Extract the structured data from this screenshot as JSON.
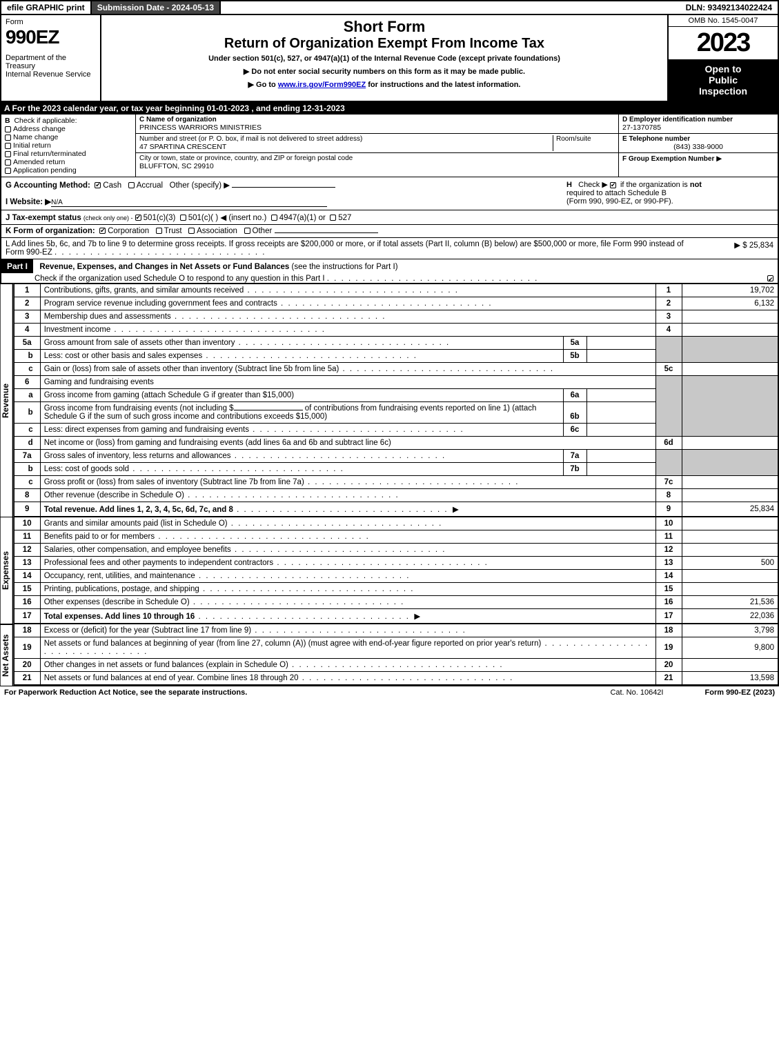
{
  "topbar": {
    "efile": "efile GRAPHIC print",
    "submission_label": "Submission Date - 2024-05-13",
    "dln": "DLN: 93492134022424"
  },
  "header": {
    "form_word": "Form",
    "form_number": "990EZ",
    "dept1": "Department of the Treasury",
    "dept2": "Internal Revenue Service",
    "title1": "Short Form",
    "title2": "Return of Organization Exempt From Income Tax",
    "subtitle": "Under section 501(c), 527, or 4947(a)(1) of the Internal Revenue Code (except private foundations)",
    "instr1": "▶ Do not enter social security numbers on this form as it may be made public.",
    "instr2_pre": "▶ Go to ",
    "instr2_link": "www.irs.gov/Form990EZ",
    "instr2_post": " for instructions and the latest information.",
    "omb": "OMB No. 1545-0047",
    "year": "2023",
    "inspection1": "Open to",
    "inspection2": "Public",
    "inspection3": "Inspection"
  },
  "lineA": "A  For the 2023 calendar year, or tax year beginning 01-01-2023 , and ending 12-31-2023",
  "boxB": {
    "title": "B",
    "check_label": "Check if applicable:",
    "opts": [
      "Address change",
      "Name change",
      "Initial return",
      "Final return/terminated",
      "Amended return",
      "Application pending"
    ]
  },
  "boxC": {
    "c_label": "C Name of organization",
    "org_name": "PRINCESS WARRIORS MINISTRIES",
    "addr_label": "Number and street (or P. O. box, if mail is not delivered to street address)",
    "room_label": "Room/suite",
    "street": "47 SPARTINA CRESCENT",
    "city_label": "City or town, state or province, country, and ZIP or foreign postal code",
    "city": "BLUFFTON, SC  29910"
  },
  "boxD": {
    "d_label": "D Employer identification number",
    "ein": "27-1370785",
    "e_label": "E Telephone number",
    "phone": "(843) 338-9000",
    "f_label": "F Group Exemption Number",
    "f_arrow": "▶"
  },
  "rowG": {
    "g_label": "G Accounting Method:",
    "g_cash": "Cash",
    "g_accrual": "Accrual",
    "g_other": "Other (specify) ▶",
    "h_label": "H",
    "h_text1": "Check ▶",
    "h_text2": "if the organization is ",
    "h_not": "not",
    "h_text3": "required to attach Schedule B",
    "h_text4": "(Form 990, 990-EZ, or 990-PF)."
  },
  "rowI": {
    "label": "I Website: ▶",
    "value": "N/A"
  },
  "rowJ": {
    "label": "J Tax-exempt status",
    "sub": "(check only one) -",
    "o1": "501(c)(3)",
    "o2": "501(c)(  ) ◀ (insert no.)",
    "o3": "4947(a)(1) or",
    "o4": "527"
  },
  "rowK": {
    "label": "K Form of organization:",
    "o1": "Corporation",
    "o2": "Trust",
    "o3": "Association",
    "o4": "Other"
  },
  "rowL": {
    "text1": "L Add lines 5b, 6c, and 7b to line 9 to determine gross receipts. If gross receipts are $200,000 or more, or if total assets (Part II, column (B) below) are $500,000 or more, file Form 990 instead of Form 990-EZ",
    "amount": "▶ $ 25,834"
  },
  "part1": {
    "label": "Part I",
    "title": "Revenue, Expenses, and Changes in Net Assets or Fund Balances",
    "title_paren": "(see the instructions for Part I)",
    "check_text": "Check if the organization used Schedule O to respond to any question in this Part I"
  },
  "sections": {
    "revenue_label": "Revenue",
    "expenses_label": "Expenses",
    "netassets_label": "Net Assets"
  },
  "lines": [
    {
      "n": "1",
      "desc": "Contributions, gifts, grants, and similar amounts received",
      "ln": "1",
      "val": "19,702"
    },
    {
      "n": "2",
      "desc": "Program service revenue including government fees and contracts",
      "ln": "2",
      "val": "6,132"
    },
    {
      "n": "3",
      "desc": "Membership dues and assessments",
      "ln": "3",
      "val": ""
    },
    {
      "n": "4",
      "desc": "Investment income",
      "ln": "4",
      "val": ""
    }
  ],
  "line5a": {
    "n": "5a",
    "desc": "Gross amount from sale of assets other than inventory",
    "mini": "5a"
  },
  "line5b": {
    "n": "b",
    "desc": "Less: cost or other basis and sales expenses",
    "mini": "5b"
  },
  "line5c": {
    "n": "c",
    "desc": "Gain or (loss) from sale of assets other than inventory (Subtract line 5b from line 5a)",
    "ln": "5c"
  },
  "line6": {
    "n": "6",
    "desc": "Gaming and fundraising events"
  },
  "line6a": {
    "n": "a",
    "desc": "Gross income from gaming (attach Schedule G if greater than $15,000)",
    "mini": "6a"
  },
  "line6b": {
    "n": "b",
    "desc1": "Gross income from fundraising events (not including $",
    "desc2": "of contributions from fundraising events reported on line 1) (attach Schedule G if the sum of such gross income and contributions exceeds $15,000)",
    "mini": "6b"
  },
  "line6c": {
    "n": "c",
    "desc": "Less: direct expenses from gaming and fundraising events",
    "mini": "6c"
  },
  "line6d": {
    "n": "d",
    "desc": "Net income or (loss) from gaming and fundraising events (add lines 6a and 6b and subtract line 6c)",
    "ln": "6d"
  },
  "line7a": {
    "n": "7a",
    "desc": "Gross sales of inventory, less returns and allowances",
    "mini": "7a"
  },
  "line7b": {
    "n": "b",
    "desc": "Less: cost of goods sold",
    "mini": "7b"
  },
  "line7c": {
    "n": "c",
    "desc": "Gross profit or (loss) from sales of inventory (Subtract line 7b from line 7a)",
    "ln": "7c"
  },
  "line8": {
    "n": "8",
    "desc": "Other revenue (describe in Schedule O)",
    "ln": "8"
  },
  "line9": {
    "n": "9",
    "desc": "Total revenue. Add lines 1, 2, 3, 4, 5c, 6d, 7c, and 8",
    "ln": "9",
    "val": "25,834"
  },
  "exp_lines": [
    {
      "n": "10",
      "desc": "Grants and similar amounts paid (list in Schedule O)",
      "ln": "10",
      "val": ""
    },
    {
      "n": "11",
      "desc": "Benefits paid to or for members",
      "ln": "11",
      "val": ""
    },
    {
      "n": "12",
      "desc": "Salaries, other compensation, and employee benefits",
      "ln": "12",
      "val": ""
    },
    {
      "n": "13",
      "desc": "Professional fees and other payments to independent contractors",
      "ln": "13",
      "val": "500"
    },
    {
      "n": "14",
      "desc": "Occupancy, rent, utilities, and maintenance",
      "ln": "14",
      "val": ""
    },
    {
      "n": "15",
      "desc": "Printing, publications, postage, and shipping",
      "ln": "15",
      "val": ""
    },
    {
      "n": "16",
      "desc": "Other expenses (describe in Schedule O)",
      "ln": "16",
      "val": "21,536"
    },
    {
      "n": "17",
      "desc": "Total expenses. Add lines 10 through 16",
      "ln": "17",
      "val": "22,036",
      "bold": true,
      "arrow": true
    }
  ],
  "na_lines": [
    {
      "n": "18",
      "desc": "Excess or (deficit) for the year (Subtract line 17 from line 9)",
      "ln": "18",
      "val": "3,798"
    },
    {
      "n": "19",
      "desc": "Net assets or fund balances at beginning of year (from line 27, column (A)) (must agree with end-of-year figure reported on prior year's return)",
      "ln": "19",
      "val": "9,800",
      "grey": true
    },
    {
      "n": "20",
      "desc": "Other changes in net assets or fund balances (explain in Schedule O)",
      "ln": "20",
      "val": ""
    },
    {
      "n": "21",
      "desc": "Net assets or fund balances at end of year. Combine lines 18 through 20",
      "ln": "21",
      "val": "13,598"
    }
  ],
  "footer": {
    "left": "For Paperwork Reduction Act Notice, see the separate instructions.",
    "center": "Cat. No. 10642I",
    "right_pre": "Form ",
    "right_bold": "990-EZ",
    "right_post": " (2023)"
  }
}
